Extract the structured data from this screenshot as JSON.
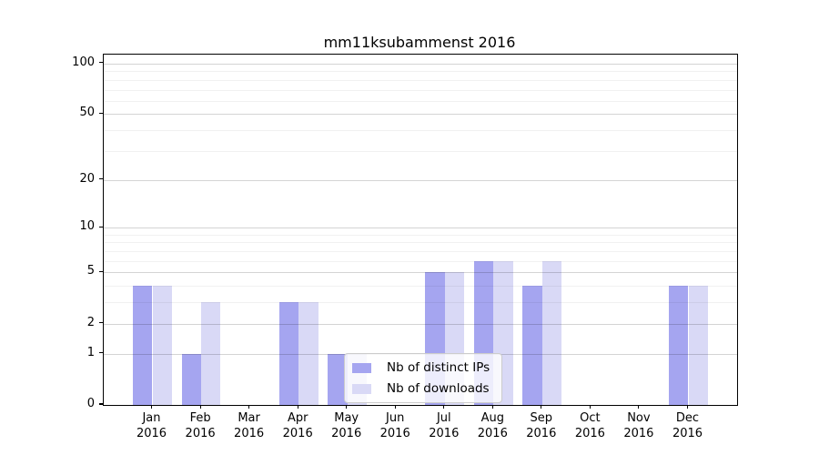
{
  "chart_data": {
    "type": "bar",
    "title": "mm11ksubammenst 2016",
    "categories": [
      "Jan 2016",
      "Feb 2016",
      "Mar 2016",
      "Apr 2016",
      "May 2016",
      "Jun 2016",
      "Jul 2016",
      "Aug 2016",
      "Sep 2016",
      "Oct 2016",
      "Nov 2016",
      "Dec 2016"
    ],
    "series": [
      {
        "name": "Nb of distinct IPs",
        "color": "#a5a5f0",
        "values": [
          4,
          1,
          0,
          3,
          1,
          0,
          5,
          6,
          4,
          0,
          0,
          4
        ]
      },
      {
        "name": "Nb of downloads",
        "color": "#d9d9f6",
        "values": [
          4,
          3,
          0,
          3,
          1,
          0,
          5,
          6,
          6,
          0,
          0,
          4
        ]
      }
    ],
    "xlabel": "",
    "ylabel": "",
    "yscale": "log1p",
    "ylim": [
      0,
      113
    ],
    "yticks_labeled": [
      0,
      1,
      2,
      5,
      10,
      20,
      50,
      100
    ],
    "yticks_minor": [
      3,
      4,
      6,
      7,
      8,
      9,
      30,
      40,
      60,
      70,
      80,
      90
    ],
    "grid": true,
    "grid_over_bars": true,
    "legend_position": "inside-lower-center"
  }
}
